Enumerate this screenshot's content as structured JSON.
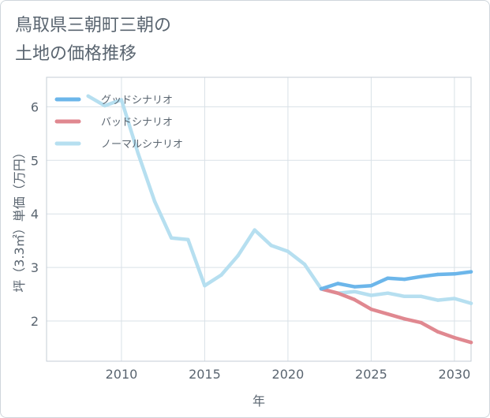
{
  "title": {
    "line1": "鳥取県三朝町三朝の",
    "line2": "土地の価格推移"
  },
  "chart_data": {
    "type": "line",
    "xlabel": "年",
    "ylabel": "坪（3.3㎡）単価（万円）",
    "xlim": [
      2005.5,
      2031
    ],
    "ylim": [
      1.25,
      6.55
    ],
    "x_ticks": [
      2010,
      2015,
      2020,
      2025,
      2030
    ],
    "y_ticks": [
      2,
      3,
      4,
      5,
      6
    ],
    "legend_position": "top-left",
    "series": [
      {
        "name": "グッドシナリオ",
        "color": "#6cb6ea",
        "x": [
          2022,
          2023,
          2024,
          2025,
          2026,
          2027,
          2028,
          2029,
          2030,
          2031
        ],
        "values": [
          2.6,
          2.7,
          2.64,
          2.66,
          2.8,
          2.78,
          2.83,
          2.87,
          2.88,
          2.92
        ]
      },
      {
        "name": "バッドシナリオ",
        "color": "#e08890",
        "x": [
          2022,
          2023,
          2024,
          2025,
          2026,
          2027,
          2028,
          2029,
          2030,
          2031
        ],
        "values": [
          2.6,
          2.52,
          2.4,
          2.22,
          2.13,
          2.04,
          1.97,
          1.8,
          1.69,
          1.6
        ]
      },
      {
        "name": "ノーマルシナリオ",
        "color": "#b6dff0",
        "x": [
          2008,
          2009,
          2010,
          2011,
          2012,
          2013,
          2014,
          2015,
          2016,
          2017,
          2018,
          2019,
          2020,
          2021,
          2022,
          2023,
          2024,
          2025,
          2026,
          2027,
          2028,
          2029,
          2030,
          2031
        ],
        "values": [
          6.2,
          6.02,
          6.13,
          5.13,
          4.23,
          3.55,
          3.52,
          2.66,
          2.86,
          3.22,
          3.7,
          3.41,
          3.3,
          3.06,
          2.6,
          2.52,
          2.55,
          2.48,
          2.52,
          2.46,
          2.46,
          2.39,
          2.42,
          2.33
        ]
      }
    ]
  }
}
